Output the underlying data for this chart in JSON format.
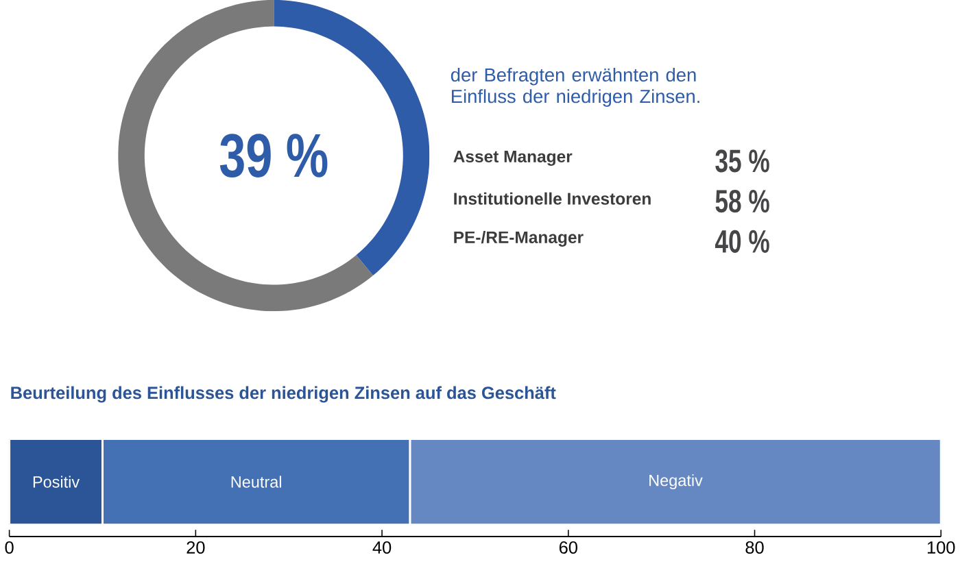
{
  "chart_data": [
    {
      "type": "donut",
      "categories": [
        null,
        null
      ],
      "values": [
        39,
        61
      ],
      "colors": [
        "#2f5ca8",
        "#7a7a7a"
      ],
      "annotations": [
        "39 %",
        "der Befragten erwähnten den Einfluss der niedrigen Zinsen.",
        "Asset Manager",
        "35 %",
        "Institutionelle Investoren",
        "58 %",
        "PE-/RE-Manager",
        "40 %"
      ]
    },
    {
      "type": "bar",
      "orientation": "horizontal",
      "stacked": true,
      "title": "Beurteilung des Einflusses der niedrigen Zinsen auf das Geschäft",
      "categories": [
        null
      ],
      "series": [
        {
          "name": "Positiv",
          "color": "#2c5597",
          "values": [
            10
          ]
        },
        {
          "name": "Neutral",
          "color": "#4470b4",
          "values": [
            33
          ]
        },
        {
          "name": "Negativ",
          "color": "#6688c2",
          "values": [
            57
          ]
        }
      ],
      "xlim": [
        0,
        100
      ],
      "xticks": [
        0,
        20,
        40,
        60,
        80,
        100
      ]
    }
  ]
}
